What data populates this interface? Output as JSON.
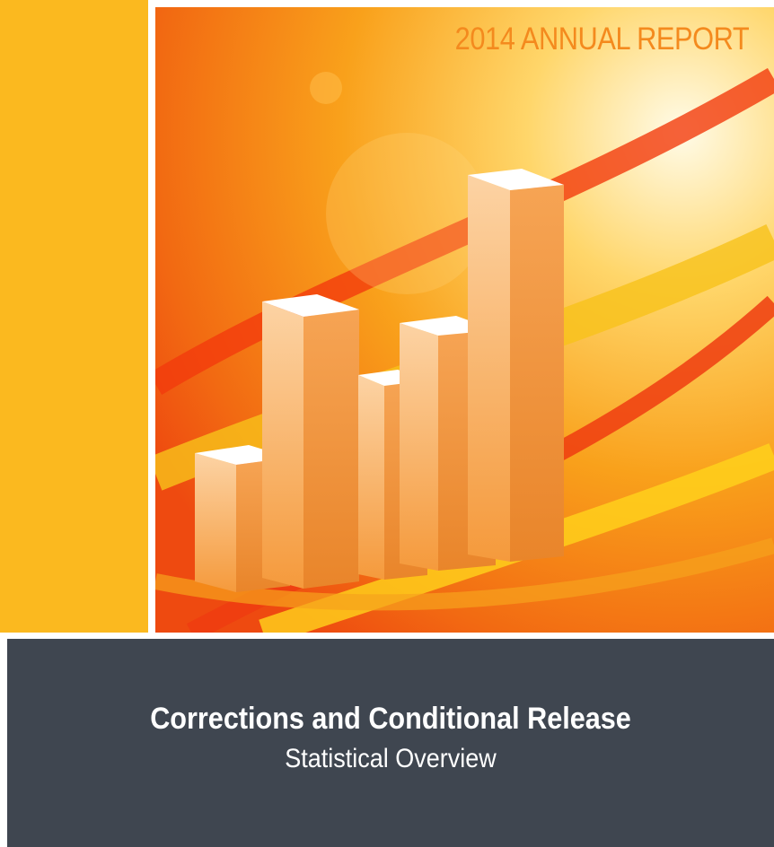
{
  "header": {
    "title": "2014 ANNUAL REPORT"
  },
  "footer": {
    "title": "Corrections and Conditional Release",
    "subtitle": "Statistical Overview"
  }
}
